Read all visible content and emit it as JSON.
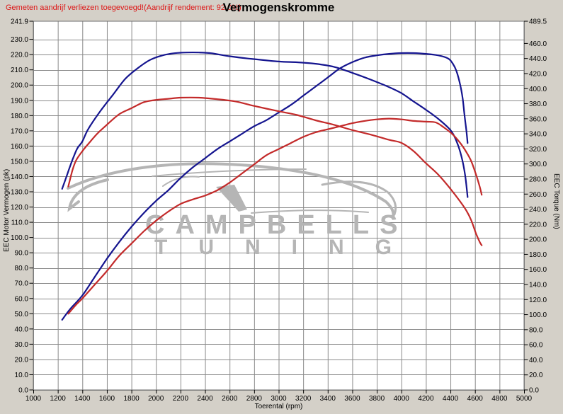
{
  "header": {
    "warning": "Gemeten aandrijf verliezen toegevoegd!(Aandrijf rendement: 92.0%)",
    "title": "Vermogenskromme"
  },
  "axes": {
    "left_title": "EEC Motor Vermogen (pk)",
    "right_title": "EEC Torque (Nm)",
    "x_title": "Toerental (rpm)",
    "left_ticks": [
      241.9,
      230,
      220,
      210,
      200,
      190,
      180,
      170,
      160,
      150,
      140,
      130,
      120,
      110,
      100,
      90,
      80,
      70,
      60,
      50,
      40,
      30,
      20,
      10,
      0
    ],
    "right_ticks": [
      489.5,
      460,
      440,
      420,
      400,
      380,
      360,
      340,
      320,
      300,
      280,
      260,
      240,
      220,
      200,
      180,
      160,
      140,
      120,
      100,
      80,
      60,
      40,
      20,
      0
    ],
    "x_ticks": [
      1000,
      1200,
      1400,
      1600,
      1800,
      2000,
      2200,
      2400,
      2600,
      2800,
      3000,
      3200,
      3400,
      3600,
      3800,
      4000,
      4200,
      4400,
      4600,
      4800,
      5000
    ]
  },
  "watermark": {
    "line1": "CAMPBELLS",
    "line2": "TUNING"
  },
  "colors": {
    "background": "#d4d0c8",
    "plot_background": "#ffffff",
    "grid": "#8a8a8a",
    "frame": "#6e6e6e",
    "blue_curve": "#15158f",
    "red_curve": "#c32a2a",
    "warning_text": "#dd1717",
    "watermark": "#b5b5b5"
  },
  "chart_data": {
    "type": "line",
    "title": "Vermogenskromme",
    "xlabel": "Toerental (rpm)",
    "ylabel_left": "EEC Motor Vermogen (pk)",
    "ylabel_right": "EEC Torque (Nm)",
    "x_range": [
      1000,
      5000
    ],
    "left_range": [
      0,
      241.9
    ],
    "right_range": [
      0,
      489.5
    ],
    "grid": true,
    "legend": "none",
    "series": [
      {
        "name": "power-blue",
        "axis": "left",
        "unit": "pk",
        "color": "#15158f",
        "points": [
          [
            1235,
            46
          ],
          [
            1300,
            53
          ],
          [
            1400,
            62
          ],
          [
            1500,
            74
          ],
          [
            1600,
            86
          ],
          [
            1700,
            97
          ],
          [
            1800,
            107
          ],
          [
            1900,
            116
          ],
          [
            2000,
            124
          ],
          [
            2100,
            131
          ],
          [
            2200,
            139
          ],
          [
            2300,
            146
          ],
          [
            2400,
            152
          ],
          [
            2500,
            158
          ],
          [
            2600,
            163
          ],
          [
            2700,
            168
          ],
          [
            2800,
            173
          ],
          [
            2900,
            177
          ],
          [
            3000,
            182
          ],
          [
            3100,
            187
          ],
          [
            3200,
            193
          ],
          [
            3300,
            199
          ],
          [
            3400,
            205
          ],
          [
            3500,
            211
          ],
          [
            3600,
            215
          ],
          [
            3700,
            218
          ],
          [
            3800,
            219.5
          ],
          [
            3900,
            220.5
          ],
          [
            4000,
            221
          ],
          [
            4100,
            221
          ],
          [
            4200,
            220.5
          ],
          [
            4300,
            219.5
          ],
          [
            4380,
            217.5
          ],
          [
            4420,
            214
          ],
          [
            4450,
            209
          ],
          [
            4480,
            200
          ],
          [
            4500,
            191
          ],
          [
            4515,
            180
          ],
          [
            4530,
            170
          ],
          [
            4540,
            162
          ]
        ]
      },
      {
        "name": "torque-blue",
        "axis": "right",
        "unit": "Nm",
        "color": "#15158f",
        "points": [
          [
            1235,
            267
          ],
          [
            1270,
            283
          ],
          [
            1300,
            297
          ],
          [
            1330,
            310
          ],
          [
            1360,
            321
          ],
          [
            1400,
            330
          ],
          [
            1450,
            347
          ],
          [
            1550,
            371
          ],
          [
            1650,
            392
          ],
          [
            1750,
            413
          ],
          [
            1850,
            427
          ],
          [
            1950,
            438
          ],
          [
            2050,
            444
          ],
          [
            2150,
            447
          ],
          [
            2250,
            448
          ],
          [
            2350,
            448
          ],
          [
            2450,
            447
          ],
          [
            2600,
            443
          ],
          [
            2750,
            440
          ],
          [
            3000,
            436
          ],
          [
            3150,
            435
          ],
          [
            3300,
            433
          ],
          [
            3450,
            429
          ],
          [
            3600,
            421
          ],
          [
            3750,
            412
          ],
          [
            3900,
            402
          ],
          [
            4000,
            394
          ],
          [
            4100,
            383
          ],
          [
            4200,
            372
          ],
          [
            4300,
            360
          ],
          [
            4400,
            345
          ],
          [
            4450,
            330
          ],
          [
            4490,
            310
          ],
          [
            4520,
            285
          ],
          [
            4540,
            256
          ]
        ]
      },
      {
        "name": "power-red",
        "axis": "left",
        "unit": "pk",
        "color": "#c32a2a",
        "points": [
          [
            1285,
            50
          ],
          [
            1350,
            56
          ],
          [
            1400,
            60
          ],
          [
            1500,
            69
          ],
          [
            1600,
            78
          ],
          [
            1700,
            88
          ],
          [
            1800,
            96
          ],
          [
            1900,
            104
          ],
          [
            2000,
            111
          ],
          [
            2100,
            117
          ],
          [
            2200,
            122
          ],
          [
            2300,
            125
          ],
          [
            2400,
            127.5
          ],
          [
            2500,
            131
          ],
          [
            2600,
            136
          ],
          [
            2700,
            142
          ],
          [
            2800,
            148
          ],
          [
            2900,
            154
          ],
          [
            3000,
            158
          ],
          [
            3100,
            162
          ],
          [
            3200,
            166
          ],
          [
            3300,
            169
          ],
          [
            3400,
            171
          ],
          [
            3500,
            173
          ],
          [
            3600,
            175
          ],
          [
            3700,
            176.5
          ],
          [
            3800,
            177.5
          ],
          [
            3900,
            178
          ],
          [
            4000,
            177.5
          ],
          [
            4100,
            176.5
          ],
          [
            4200,
            176
          ],
          [
            4280,
            175.5
          ],
          [
            4350,
            172
          ],
          [
            4420,
            167.5
          ],
          [
            4480,
            162
          ],
          [
            4530,
            156
          ],
          [
            4570,
            150
          ],
          [
            4610,
            141
          ],
          [
            4640,
            133
          ],
          [
            4655,
            128
          ]
        ]
      },
      {
        "name": "torque-red",
        "axis": "right",
        "unit": "Nm",
        "color": "#c32a2a",
        "points": [
          [
            1285,
            270
          ],
          [
            1320,
            292
          ],
          [
            1350,
            305
          ],
          [
            1400,
            317
          ],
          [
            1450,
            327
          ],
          [
            1520,
            340
          ],
          [
            1600,
            352
          ],
          [
            1700,
            366
          ],
          [
            1800,
            374
          ],
          [
            1900,
            382
          ],
          [
            2000,
            385
          ],
          [
            2100,
            386.5
          ],
          [
            2200,
            388
          ],
          [
            2350,
            388
          ],
          [
            2500,
            386
          ],
          [
            2650,
            383
          ],
          [
            2800,
            377
          ],
          [
            3000,
            370
          ],
          [
            3150,
            365
          ],
          [
            3300,
            358
          ],
          [
            3450,
            352
          ],
          [
            3600,
            345
          ],
          [
            3750,
            339
          ],
          [
            3900,
            332
          ],
          [
            4000,
            328
          ],
          [
            4100,
            317
          ],
          [
            4200,
            301
          ],
          [
            4300,
            286
          ],
          [
            4400,
            267
          ],
          [
            4480,
            250
          ],
          [
            4530,
            238
          ],
          [
            4570,
            225
          ],
          [
            4610,
            207
          ],
          [
            4640,
            196
          ],
          [
            4655,
            192
          ]
        ]
      }
    ]
  }
}
